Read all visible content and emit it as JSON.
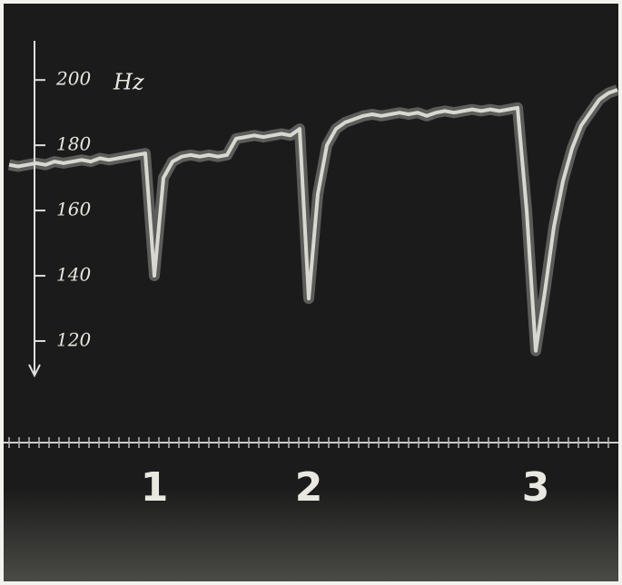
{
  "chart_data": {
    "type": "line",
    "y_label": "Hz",
    "ylim": [
      110,
      212
    ],
    "yticks": [
      120,
      140,
      160,
      180,
      200
    ],
    "color": "#d8d8d0",
    "categories": [
      null,
      null,
      null,
      null,
      null,
      null,
      null,
      null,
      null,
      null,
      null,
      null,
      null,
      null,
      null,
      null,
      null,
      null,
      null,
      null,
      null,
      null,
      null,
      null,
      null,
      null,
      null,
      null,
      null,
      null,
      null,
      null,
      null,
      null,
      null,
      null,
      null,
      null,
      null,
      null,
      null,
      null,
      null,
      null,
      null,
      null,
      null,
      null,
      null,
      null,
      null,
      null,
      null,
      null,
      null,
      null,
      null,
      null,
      null,
      null,
      null,
      null,
      null,
      null,
      null,
      null,
      null,
      null
    ],
    "values": [
      174,
      173.5,
      174,
      174.5,
      174,
      175,
      174.5,
      175,
      175.5,
      175,
      176,
      175.5,
      176,
      176.5,
      177,
      177.5,
      140,
      170,
      175,
      176.5,
      177,
      176.5,
      177,
      176.5,
      177,
      182,
      182.5,
      183,
      182.5,
      183,
      183.5,
      183,
      185,
      133,
      165,
      180,
      185,
      187,
      188,
      189,
      189.5,
      189,
      189.5,
      190,
      189.5,
      190,
      189,
      190,
      190.5,
      190,
      190.5,
      191,
      190.5,
      191,
      190.5,
      191,
      191.5,
      160,
      117,
      135,
      155,
      169,
      179,
      186,
      190,
      194,
      196,
      197
    ],
    "event_labels": [
      "1",
      "2",
      "3"
    ]
  }
}
